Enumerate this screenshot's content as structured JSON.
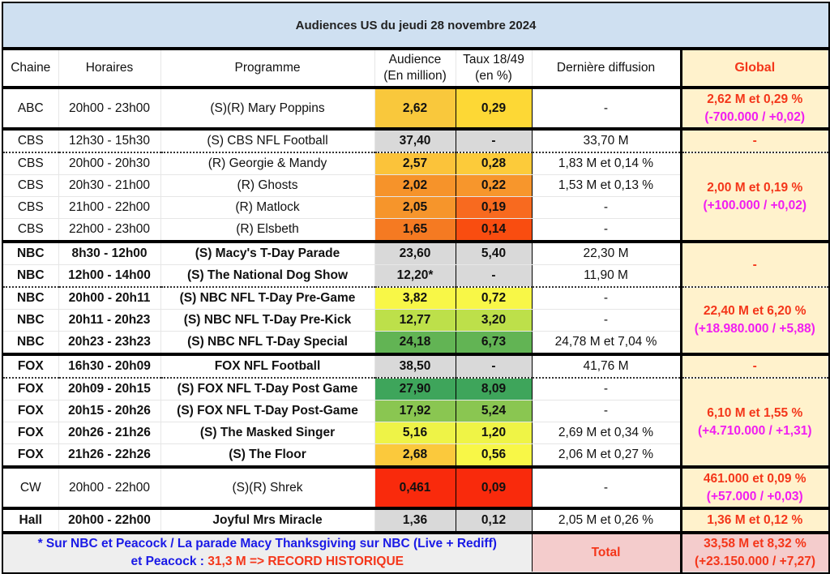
{
  "title": "Audiences US du jeudi 28 novembre 2024",
  "headers": {
    "chaine": "Chaine",
    "horaires": "Horaires",
    "programme": "Programme",
    "audience1": "Audience",
    "audience2": "(En million)",
    "taux1": "Taux 18/49",
    "taux2": "(en %)",
    "derniere": "Dernière diffusion",
    "global": "Global"
  },
  "rows": [
    {
      "chaine": "ABC",
      "horaires": "20h00 - 23h00",
      "programme": "(S)(R) Mary Poppins",
      "audience": "2,62",
      "taux": "0,29",
      "derniere": "-",
      "aud_color": "#f9c83c",
      "taux_color": "#fdd835",
      "bold": false,
      "tall": true,
      "sepTop": "thick",
      "global": {
        "main": "2,62 M et 0,29 %",
        "sub": "(-700.000 / +0,02)",
        "span": 1
      }
    },
    {
      "chaine": "CBS",
      "horaires": "12h30 - 15h30",
      "programme": "(S) CBS NFL Football",
      "audience": "37,40",
      "taux": "-",
      "derniere": "33,70 M",
      "aud_color": "#d9d9d9",
      "taux_color": "#d9d9d9",
      "bold": false,
      "sepTop": "thick",
      "global": {
        "main": "-",
        "sub": "",
        "span": 1
      }
    },
    {
      "chaine": "CBS",
      "horaires": "20h00 - 20h30",
      "programme": "(R) Georgie & Mandy",
      "audience": "2,57",
      "taux": "0,28",
      "derniere": "1,83 M et 0,14 %",
      "aud_color": "#fbc33a",
      "taux_color": "#fccb3a",
      "bold": false,
      "sepTop": "dot",
      "global": {
        "main": "2,00 M et 0,19 %",
        "sub": "(+100.000 / +0,02)",
        "span": 4
      }
    },
    {
      "chaine": "CBS",
      "horaires": "20h30 - 21h00",
      "programme": "(R) Ghosts",
      "audience": "2,02",
      "taux": "0,22",
      "derniere": "1,53 M et 0,13 %",
      "aud_color": "#f6932a",
      "taux_color": "#f7962c",
      "bold": false
    },
    {
      "chaine": "CBS",
      "horaires": "21h00 - 22h00",
      "programme": "(R) Matlock",
      "audience": "2,05",
      "taux": "0,19",
      "derniere": "-",
      "aud_color": "#f6952b",
      "taux_color": "#f86a1f",
      "bold": false
    },
    {
      "chaine": "CBS",
      "horaires": "22h00 - 23h00",
      "programme": "(R) Elsbeth",
      "audience": "1,65",
      "taux": "0,14",
      "derniere": "-",
      "aud_color": "#f57a22",
      "taux_color": "#f94d10",
      "bold": false
    },
    {
      "chaine": "NBC",
      "horaires": "8h30 - 12h00",
      "programme": "(S) Macy's T-Day Parade",
      "audience": "23,60",
      "taux": "5,40",
      "derniere": "22,30 M",
      "aud_color": "#d9d9d9",
      "taux_color": "#d9d9d9",
      "bold": true,
      "sepTop": "thick",
      "global": {
        "main": "-",
        "sub": "",
        "span": 2
      }
    },
    {
      "chaine": "NBC",
      "horaires": "12h00 - 14h00",
      "programme": "(S) The National Dog Show",
      "audience": "12,20*",
      "taux": "-",
      "derniere": "11,90 M",
      "aud_color": "#d9d9d9",
      "taux_color": "#d9d9d9",
      "bold": true
    },
    {
      "chaine": "NBC",
      "horaires": "20h00 - 20h11",
      "programme": "(S) NBC NFL T-Day Pre-Game",
      "audience": "3,82",
      "taux": "0,72",
      "derniere": "-",
      "aud_color": "#f8f747",
      "taux_color": "#f8f747",
      "bold": true,
      "sepTop": "dot",
      "global": {
        "main": "22,40 M et 6,20 %",
        "sub": "(+18.980.000 / +5,88)",
        "span": 3
      }
    },
    {
      "chaine": "NBC",
      "horaires": "20h11 - 20h23",
      "programme": "(S) NBC NFL T-Day Pre-Kick",
      "audience": "12,77",
      "taux": "3,20",
      "derniere": "-",
      "aud_color": "#bde04a",
      "taux_color": "#bde04a",
      "bold": true
    },
    {
      "chaine": "NBC",
      "horaires": "20h23 - 23h23",
      "programme": "(S) NBC NFL T-Day Special",
      "audience": "24,18",
      "taux": "6,73",
      "derniere": "24,78 M et 7,04 %",
      "aud_color": "#62b454",
      "taux_color": "#62b454",
      "bold": true
    },
    {
      "chaine": "FOX",
      "horaires": "16h30 - 20h09",
      "programme": "FOX NFL Football",
      "audience": "38,50",
      "taux": "-",
      "derniere": "41,76 M",
      "aud_color": "#d9d9d9",
      "taux_color": "#d9d9d9",
      "bold": true,
      "sepTop": "thick",
      "global": {
        "main": "-",
        "sub": "",
        "span": 1
      }
    },
    {
      "chaine": "FOX",
      "horaires": "20h09 - 20h15",
      "programme": "(S) FOX NFL T-Day Post Game",
      "audience": "27,90",
      "taux": "8,09",
      "derniere": "-",
      "aud_color": "#3ea55b",
      "taux_color": "#3ea55b",
      "bold": true,
      "sepTop": "dot",
      "global": {
        "main": "6,10 M et 1,55 %",
        "sub": "(+4.710.000 / +1,31)",
        "span": 4
      }
    },
    {
      "chaine": "FOX",
      "horaires": "20h15 - 20h26",
      "programme": "(S) FOX NFL T-Day Post-Game",
      "audience": "17,92",
      "taux": "5,24",
      "derniere": "-",
      "aud_color": "#8ac651",
      "taux_color": "#8ac651",
      "bold": true
    },
    {
      "chaine": "FOX",
      "horaires": "20h26 - 21h26",
      "programme": "(S) The Masked Singer",
      "audience": "5,16",
      "taux": "1,20",
      "derniere": "2,69 M et 0,34 %",
      "aud_color": "#eef347",
      "taux_color": "#eff446",
      "bold": true
    },
    {
      "chaine": "FOX",
      "horaires": "21h26 - 22h26",
      "programme": "(S) The Floor",
      "audience": "2,68",
      "taux": "0,56",
      "derniere": "2,06 M et 0,27 %",
      "aud_color": "#fbc93c",
      "taux_color": "#f8f747",
      "bold": true
    },
    {
      "chaine": "CW",
      "horaires": "20h00 - 22h00",
      "programme": "(S)(R) Shrek",
      "audience": "0,461",
      "taux": "0,09",
      "derniere": "-",
      "aud_color": "#f92a0c",
      "taux_color": "#f92a0c",
      "bold": false,
      "tall": true,
      "sepTop": "thick",
      "global": {
        "main": "461.000 et 0,09 %",
        "sub": "(+57.000 / +0,03)",
        "span": 1
      }
    },
    {
      "chaine": "Hall",
      "horaires": "20h00 - 22h00",
      "programme": "Joyful Mrs Miracle",
      "audience": "1,36",
      "taux": "0,12",
      "derniere": "2,05 M et 0,26 %",
      "aud_color": "#d9d9d9",
      "taux_color": "#d9d9d9",
      "bold": true,
      "sepTop": "thick",
      "global": {
        "main": "1,36 M et 0,12 %",
        "sub": "",
        "span": 1
      }
    }
  ],
  "footer": {
    "note_line1": "* Sur NBC et Peacock / La parade Macy Thanksgiving sur NBC (Live + Rediff)",
    "note_line2_prefix": "et Peacock : ",
    "note_line2_highlight": "31,3 M => RECORD HISTORIQUE",
    "total_label": "Total",
    "total_main": "33,58 M et 8,32 %",
    "total_sub": "(+23.150.000 / +7,27)"
  }
}
